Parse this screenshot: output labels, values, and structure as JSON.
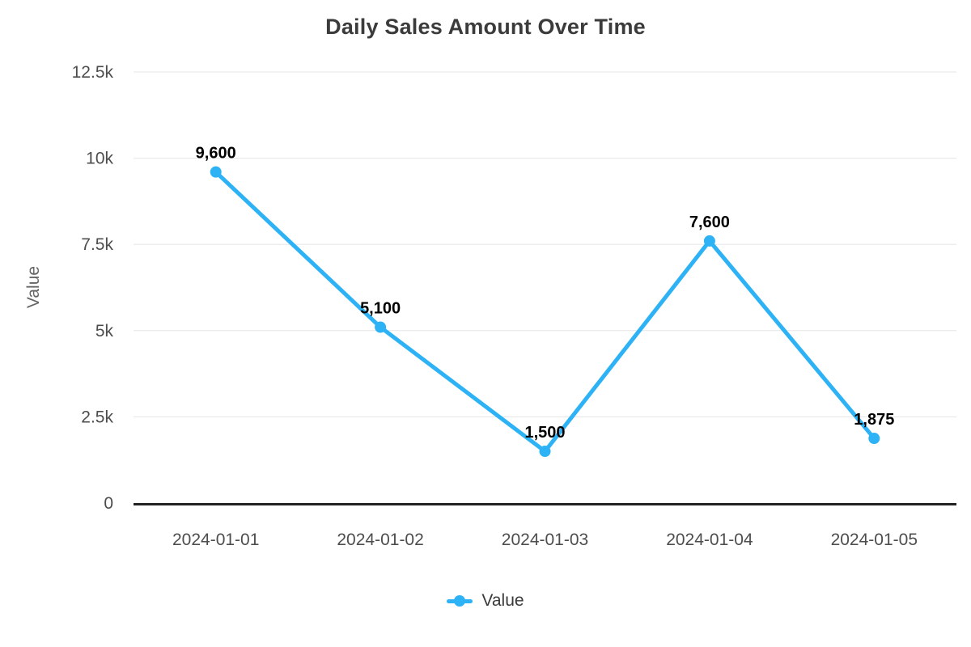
{
  "title": "Daily Sales Amount Over Time",
  "colors": {
    "line": "#2db2f5",
    "axis_line": "#222222",
    "grid": "#e5e5e5",
    "title_text": "#3b3b3b",
    "tick_text": "#4d4d4d",
    "axis_title_text": "#666666",
    "data_label_text": "#000000",
    "legend_text": "#3a3a3a",
    "background": "#ffffff"
  },
  "legend": {
    "position": "bottom",
    "items": [
      {
        "label": "Value",
        "marker": "line-with-dot-icon"
      }
    ]
  },
  "chart_data": {
    "type": "line",
    "title": "Daily Sales Amount Over Time",
    "xlabel": "",
    "ylabel": "Value",
    "x": [
      "2024-01-01",
      "2024-01-02",
      "2024-01-03",
      "2024-01-04",
      "2024-01-05"
    ],
    "series": [
      {
        "name": "Value",
        "values": [
          9600,
          5100,
          1500,
          7600,
          1875
        ]
      }
    ],
    "data_labels": [
      "9,600",
      "5,100",
      "1,500",
      "7,600",
      "1,875"
    ],
    "ylim": [
      0,
      12500
    ],
    "y_ticks": [
      {
        "value": 0,
        "label": "0"
      },
      {
        "value": 2500,
        "label": "2.5k"
      },
      {
        "value": 5000,
        "label": "5k"
      },
      {
        "value": 7500,
        "label": "7.5k"
      },
      {
        "value": 10000,
        "label": "10k"
      },
      {
        "value": 12500,
        "label": "12.5k"
      }
    ],
    "grid": true,
    "legend_position": "bottom"
  }
}
